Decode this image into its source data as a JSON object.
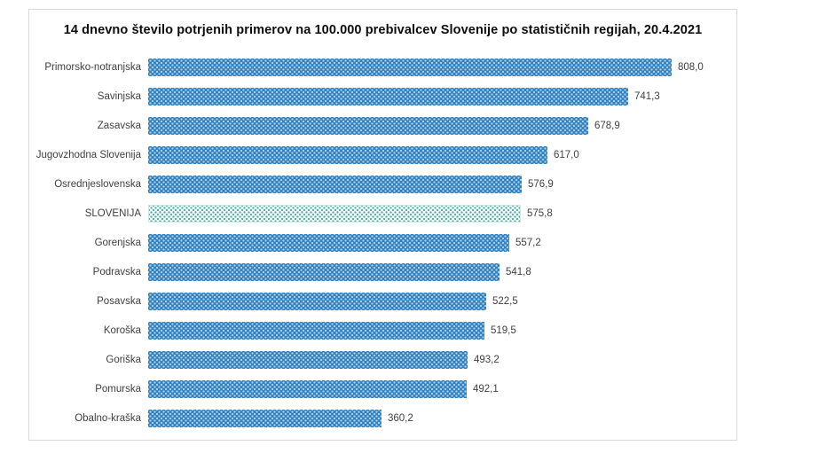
{
  "chart_data": {
    "type": "bar",
    "orientation": "horizontal",
    "title": "14 dnevno število potrjenih primerov na 100.000 prebivalcev Slovenije po statističnih regijah, 20.4.2021",
    "categories": [
      "Primorsko-notranjska",
      "Savinjska",
      "Zasavska",
      "Jugovzhodna Slovenija",
      "Osrednjeslovenska",
      "SLOVENIJA",
      "Gorenjska",
      "Podravska",
      "Posavska",
      "Koroška",
      "Goriška",
      "Pomurska",
      "Obalno-kraška"
    ],
    "values": [
      808.0,
      741.3,
      678.9,
      617.0,
      576.9,
      575.8,
      557.2,
      541.8,
      522.5,
      519.5,
      493.2,
      492.1,
      360.2
    ],
    "value_labels": [
      "808,0",
      "741,3",
      "678,9",
      "617,0",
      "576,9",
      "575,8",
      "557,2",
      "541,8",
      "522,5",
      "519,5",
      "493,2",
      "492,1",
      "360,2"
    ],
    "highlight_category": "SLOVENIJA",
    "xlim": [
      0,
      850
    ],
    "bar_color": "#2f81c0",
    "highlight_color": "#3e9e95",
    "value_label_color": "#404040",
    "grid": false,
    "legend": "none"
  }
}
